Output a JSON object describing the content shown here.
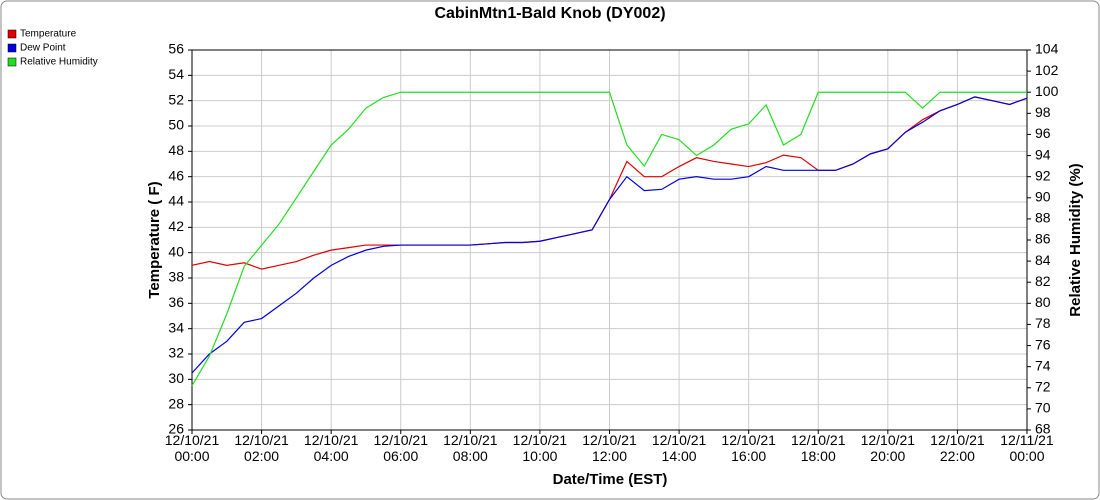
{
  "chart_data": {
    "type": "line",
    "title": "CabinMtn1-Bald Knob (DY002)",
    "x_label": "Date/Time (EST)",
    "y_label": "Temperature ( F)",
    "y2_label": "Relative Humidity (%)",
    "x": [
      0,
      0.5,
      1,
      1.5,
      2,
      2.5,
      3,
      3.5,
      4,
      4.5,
      5,
      5.5,
      6,
      6.5,
      7,
      7.5,
      8,
      8.5,
      9,
      9.5,
      10,
      10.5,
      11,
      11.5,
      12,
      12.5,
      13,
      13.5,
      14,
      14.5,
      15,
      15.5,
      16,
      16.5,
      17,
      17.5,
      18,
      18.5,
      19,
      19.5,
      20,
      20.5,
      21,
      21.5,
      22,
      22.5,
      23,
      23.5,
      24
    ],
    "xlim": [
      0,
      24
    ],
    "xticks": [
      {
        "value": 0,
        "label": "12/10/21\n00:00"
      },
      {
        "value": 2,
        "label": "12/10/21\n02:00"
      },
      {
        "value": 4,
        "label": "12/10/21\n04:00"
      },
      {
        "value": 6,
        "label": "12/10/21\n06:00"
      },
      {
        "value": 8,
        "label": "12/10/21\n08:00"
      },
      {
        "value": 10,
        "label": "12/10/21\n10:00"
      },
      {
        "value": 12,
        "label": "12/10/21\n12:00"
      },
      {
        "value": 14,
        "label": "12/10/21\n14:00"
      },
      {
        "value": 16,
        "label": "12/10/21\n16:00"
      },
      {
        "value": 18,
        "label": "12/10/21\n18:00"
      },
      {
        "value": 20,
        "label": "12/10/21\n20:00"
      },
      {
        "value": 22,
        "label": "12/10/21\n22:00"
      },
      {
        "value": 24,
        "label": "12/11/21\n00:00"
      }
    ],
    "ylim": [
      26,
      56
    ],
    "yticks": [
      26,
      28,
      30,
      32,
      34,
      36,
      38,
      40,
      42,
      44,
      46,
      48,
      50,
      52,
      54,
      56
    ],
    "y2lim": [
      68,
      104
    ],
    "y2ticks": [
      68,
      70,
      72,
      74,
      76,
      78,
      80,
      82,
      84,
      86,
      88,
      90,
      92,
      94,
      96,
      98,
      100,
      102,
      104
    ],
    "grid": true,
    "series": [
      {
        "name": "Temperature",
        "color": "#e00000",
        "values": [
          39.0,
          39.3,
          39.0,
          39.2,
          38.7,
          39.0,
          39.3,
          39.8,
          40.2,
          40.4,
          40.6,
          40.6,
          40.6,
          40.6,
          40.6,
          40.6,
          40.6,
          40.7,
          40.8,
          40.8,
          40.9,
          41.2,
          41.5,
          41.8,
          44.2,
          47.2,
          46.0,
          46.0,
          46.8,
          47.5,
          47.2,
          47.0,
          46.8,
          47.1,
          47.7,
          47.5,
          46.5,
          46.5,
          47.0,
          47.8,
          48.2,
          49.5,
          50.5,
          51.2,
          51.7,
          52.3,
          52.0,
          51.7,
          52.2
        ]
      },
      {
        "name": "Dew Point",
        "color": "#0000e0",
        "values": [
          30.5,
          32.0,
          33.0,
          34.5,
          34.8,
          35.8,
          36.8,
          38.0,
          39.0,
          39.7,
          40.2,
          40.5,
          40.6,
          40.6,
          40.6,
          40.6,
          40.6,
          40.7,
          40.8,
          40.8,
          40.9,
          41.2,
          41.5,
          41.8,
          44.2,
          46.0,
          44.9,
          45.0,
          45.8,
          46.0,
          45.8,
          45.8,
          46.0,
          46.8,
          46.5,
          46.5,
          46.5,
          46.5,
          47.0,
          47.8,
          48.2,
          49.5,
          50.3,
          51.2,
          51.7,
          52.3,
          52.0,
          51.7,
          52.2
        ]
      },
      {
        "name": "Relative Humidity",
        "color": "#22dd22",
        "axis": "y2",
        "values": [
          72.2,
          75,
          79,
          83.5,
          85.5,
          87.5,
          90,
          92.5,
          95,
          96.5,
          98.5,
          99.5,
          100,
          100,
          100,
          100,
          100,
          100,
          100,
          100,
          100,
          100,
          100,
          100,
          100,
          95,
          93,
          96,
          95.5,
          94,
          95,
          96.5,
          97,
          98.8,
          95,
          96,
          100,
          100,
          100,
          100,
          100,
          100,
          98.5,
          100,
          100,
          100,
          100,
          100,
          100
        ]
      }
    ]
  }
}
